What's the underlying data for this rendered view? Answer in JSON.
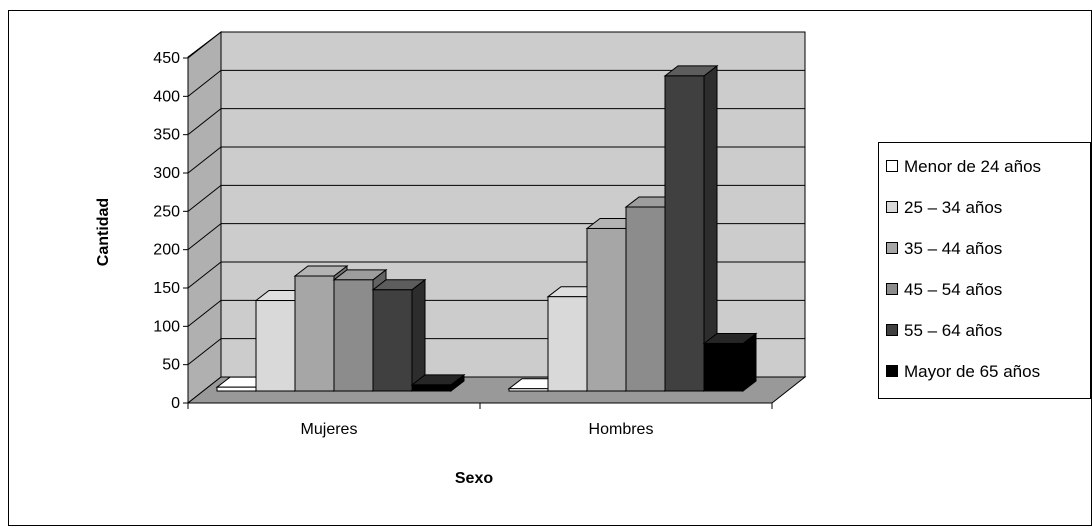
{
  "chart_data": {
    "type": "bar",
    "title": "",
    "xlabel": "Sexo",
    "ylabel": "Cantidad",
    "categories": [
      "Mujeres",
      "Hombres"
    ],
    "ylim": [
      0,
      450
    ],
    "yticks": [
      "0",
      "50",
      "100",
      "150",
      "200",
      "250",
      "300",
      "350",
      "400",
      "450"
    ],
    "grid": true,
    "legend_position": "right",
    "series": [
      {
        "name": "Menor de 24 años",
        "values": [
          5,
          3
        ],
        "color": "#ffffff"
      },
      {
        "name": "25 – 34 años",
        "values": [
          118,
          123
        ],
        "color": "#d9d9d9"
      },
      {
        "name": "35 – 44 años",
        "values": [
          150,
          212
        ],
        "color": "#a6a6a6"
      },
      {
        "name": "45 – 54 años",
        "values": [
          145,
          240
        ],
        "color": "#8c8c8c"
      },
      {
        "name": "55 – 64 años",
        "values": [
          132,
          411
        ],
        "color": "#404040"
      },
      {
        "name": "Mayor de 65 años",
        "values": [
          8,
          62
        ],
        "color": "#000000"
      }
    ],
    "colors": {
      "wall": "#cccccc",
      "floor": "#999999",
      "grid": "#000000"
    }
  }
}
